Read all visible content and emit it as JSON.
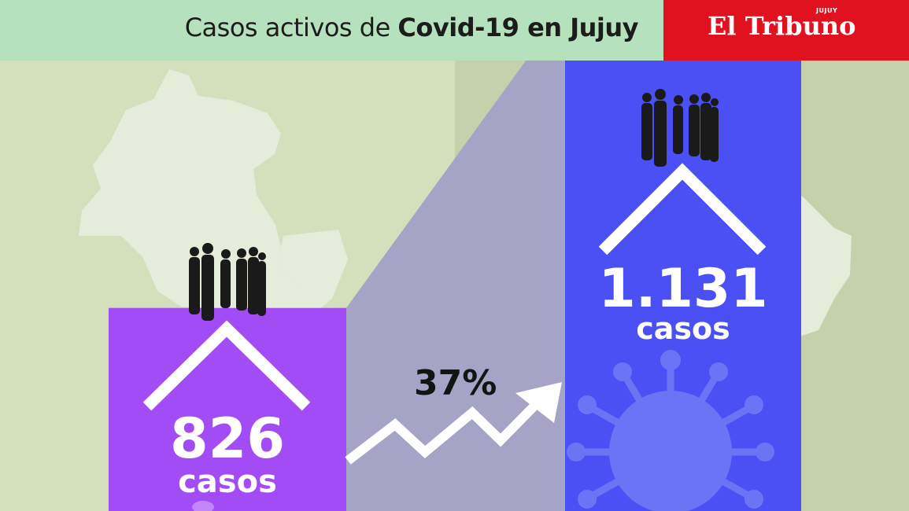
{
  "header": {
    "title_prefix": "Casos activos de ",
    "title_bold": "Covid-19 en Jujuy"
  },
  "logo": {
    "name": "El Tribuno",
    "region": "JUJUY"
  },
  "colors": {
    "header_bg": "#b5e2bd",
    "logo_bg": "#e0121f",
    "bar_before": "#a24cf5",
    "bar_after": "#4a50f3",
    "connector": "#a5a4c6"
  },
  "chart_data": {
    "type": "bar",
    "categories": [
      "",
      ""
    ],
    "values": [
      826,
      1131
    ],
    "labels": [
      "826",
      "1.131"
    ],
    "unit_label": "casos",
    "change_label": "37%",
    "ylim": [
      0,
      1400
    ]
  }
}
